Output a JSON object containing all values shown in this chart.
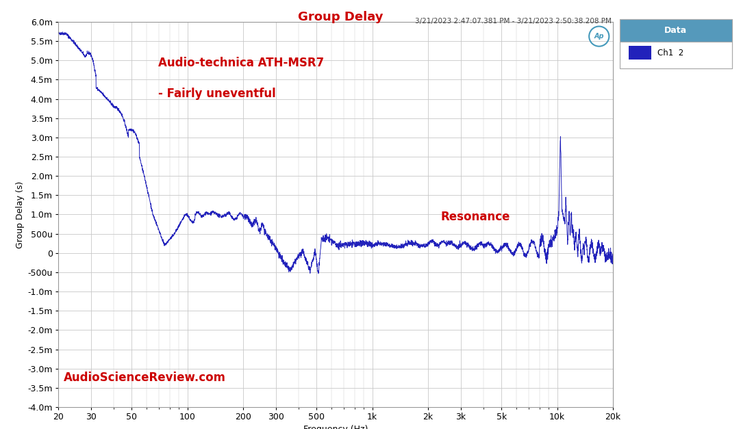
{
  "title": "Group Delay",
  "subtitle": "3/21/2023 2:47:07.381 PM - 3/21/2023 2:50:38.208 PM",
  "annotation1": "Audio-technica ATH-MSR7",
  "annotation2": "- Fairly uneventful",
  "annotation3": "Resonance",
  "watermark": "AudioScienceReview.com",
  "xlabel": "Frequency (Hz)",
  "ylabel": "Group Delay (s)",
  "line_color": "#2222bb",
  "title_color": "#cc0000",
  "annotation_color": "#cc0000",
  "watermark_color": "#cc0000",
  "subtitle_color": "#444444",
  "background_color": "#ffffff",
  "plot_bg_color": "#ffffff",
  "grid_color": "#c8c8c8",
  "legend_header_bg": "#5599bb",
  "legend_bg": "#ffffff",
  "legend_border": "#aaaaaa",
  "ap_logo_color": "#4499bb",
  "ylim_min": -0.004,
  "ylim_max": 0.006,
  "xmin": 20,
  "xmax": 20000,
  "ytick_step": 0.0005,
  "x_major_ticks": [
    20,
    30,
    50,
    100,
    200,
    300,
    500,
    1000,
    2000,
    3000,
    5000,
    10000,
    20000
  ],
  "x_tick_labels": [
    "20",
    "30",
    "50",
    "100",
    "200",
    "300",
    "500",
    "1k",
    "2k",
    "3k",
    "5k",
    "10k",
    "20k"
  ]
}
